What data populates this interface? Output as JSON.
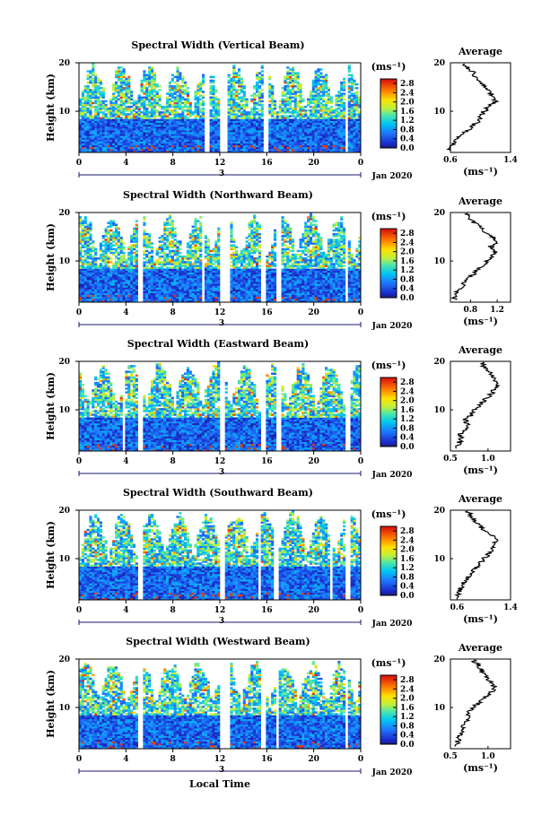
{
  "chart_data": {
    "type": "heatmap",
    "shared": {
      "xlabel": "Local Time",
      "ylabel": "Height (km)",
      "x_ticks": [
        "0",
        "4",
        "8",
        "12",
        "16",
        "20",
        "0"
      ],
      "xlim_hours": [
        0,
        24
      ],
      "day_marker": "3",
      "month_label": "Jan 2020",
      "ylim_km": [
        1.5,
        20
      ],
      "y_ticks": [
        "20",
        "10"
      ],
      "colorbar": {
        "unit_label": "(ms⁻¹)",
        "tick_labels": [
          "2.8",
          "2.4",
          "2.0",
          "1.6",
          "1.2",
          "0.8",
          "0.4",
          "0.0"
        ],
        "range": [
          0,
          3.0
        ]
      },
      "average_title": "Average",
      "average_xlabel": "(ms⁻¹)",
      "average_ylim_km": [
        1.5,
        20
      ]
    },
    "panels": [
      {
        "title": "Spectral Width (Vertical Beam)",
        "gaps_hours": [
          [
            10.6,
            11.1
          ],
          [
            12.0,
            12.6
          ],
          [
            15.7,
            16.1
          ],
          [
            22.6,
            23.0
          ]
        ],
        "average": {
          "xlim": [
            0.6,
            1.4
          ],
          "x_ticks": [
            "0.6",
            "1.4"
          ],
          "profile": [
            [
              2,
              0.58
            ],
            [
              3,
              0.62
            ],
            [
              4,
              0.68
            ],
            [
              5,
              0.75
            ],
            [
              6,
              0.82
            ],
            [
              7,
              0.9
            ],
            [
              8,
              0.97
            ],
            [
              9,
              1.0
            ],
            [
              10,
              1.05
            ],
            [
              11,
              1.12
            ],
            [
              12,
              1.2
            ],
            [
              13,
              1.18
            ],
            [
              14,
              1.12
            ],
            [
              15,
              1.08
            ],
            [
              16,
              1.0
            ],
            [
              17,
              0.95
            ],
            [
              18,
              0.9
            ],
            [
              19,
              0.82
            ],
            [
              20,
              0.75
            ]
          ]
        }
      },
      {
        "title": "Spectral Width (Northward Beam)",
        "gaps_hours": [
          [
            5.0,
            5.4
          ],
          [
            10.5,
            10.7
          ],
          [
            12.0,
            12.9
          ],
          [
            15.4,
            16.0
          ],
          [
            16.9,
            17.3
          ],
          [
            22.6,
            23.0
          ]
        ],
        "average": {
          "xlim": [
            0.5,
            1.4
          ],
          "x_ticks": [
            "0.8",
            "1.2"
          ],
          "profile": [
            [
              2,
              0.55
            ],
            [
              3,
              0.58
            ],
            [
              4,
              0.62
            ],
            [
              5,
              0.68
            ],
            [
              6,
              0.74
            ],
            [
              7,
              0.82
            ],
            [
              8,
              0.9
            ],
            [
              9,
              0.98
            ],
            [
              10,
              1.05
            ],
            [
              11,
              1.12
            ],
            [
              12,
              1.18
            ],
            [
              13,
              1.1
            ],
            [
              14,
              1.22
            ],
            [
              15,
              1.12
            ],
            [
              16,
              1.02
            ],
            [
              17,
              0.95
            ],
            [
              18,
              0.85
            ],
            [
              19,
              0.78
            ],
            [
              20,
              0.72
            ]
          ]
        }
      },
      {
        "title": "Spectral Width (Eastward Beam)",
        "gaps_hours": [
          [
            3.8,
            4.0
          ],
          [
            5.0,
            5.4
          ],
          [
            12.0,
            12.5
          ],
          [
            15.5,
            16.0
          ],
          [
            16.9,
            17.2
          ],
          [
            22.7,
            23.1
          ]
        ],
        "average": {
          "xlim": [
            0.5,
            1.3
          ],
          "x_ticks": [
            "0.5",
            "1.0"
          ],
          "profile": [
            [
              2,
              0.58
            ],
            [
              3,
              0.6
            ],
            [
              4,
              0.65
            ],
            [
              5,
              0.62
            ],
            [
              6,
              0.7
            ],
            [
              7,
              0.72
            ],
            [
              8,
              0.7
            ],
            [
              9,
              0.78
            ],
            [
              10,
              0.82
            ],
            [
              11,
              0.88
            ],
            [
              12,
              0.95
            ],
            [
              13,
              1.02
            ],
            [
              14,
              1.08
            ],
            [
              15,
              1.12
            ],
            [
              16,
              1.1
            ],
            [
              17,
              1.05
            ],
            [
              18,
              1.0
            ],
            [
              19,
              0.95
            ],
            [
              20,
              0.9
            ]
          ]
        }
      },
      {
        "title": "Spectral Width (Southward Beam)",
        "gaps_hours": [
          [
            5.0,
            5.4
          ],
          [
            12.0,
            12.5
          ],
          [
            15.3,
            15.6
          ],
          [
            16.5,
            17.0
          ],
          [
            21.3,
            21.5
          ],
          [
            22.7,
            23.1
          ]
        ],
        "average": {
          "xlim": [
            0.5,
            1.4
          ],
          "x_ticks": [
            "0.6",
            "1.4"
          ],
          "profile": [
            [
              2,
              0.6
            ],
            [
              3,
              0.62
            ],
            [
              4,
              0.66
            ],
            [
              5,
              0.7
            ],
            [
              6,
              0.75
            ],
            [
              7,
              0.82
            ],
            [
              8,
              0.88
            ],
            [
              9,
              0.95
            ],
            [
              10,
              1.0
            ],
            [
              11,
              1.08
            ],
            [
              12,
              1.12
            ],
            [
              13,
              1.15
            ],
            [
              14,
              1.2
            ],
            [
              15,
              1.1
            ],
            [
              16,
              1.0
            ],
            [
              17,
              0.92
            ],
            [
              18,
              0.85
            ],
            [
              19,
              0.8
            ],
            [
              20,
              0.75
            ]
          ]
        }
      },
      {
        "title": "Spectral Width (Westward Beam)",
        "gaps_hours": [
          [
            5.1,
            5.5
          ],
          [
            12.0,
            12.8
          ],
          [
            15.5,
            16.0
          ],
          [
            16.7,
            17.1
          ],
          [
            22.7,
            23.0
          ]
        ],
        "average": {
          "xlim": [
            0.5,
            1.3
          ],
          "x_ticks": [
            "0.5",
            "1.0"
          ],
          "profile": [
            [
              2,
              0.58
            ],
            [
              3,
              0.6
            ],
            [
              4,
              0.62
            ],
            [
              5,
              0.64
            ],
            [
              6,
              0.66
            ],
            [
              7,
              0.7
            ],
            [
              8,
              0.72
            ],
            [
              9,
              0.75
            ],
            [
              10,
              0.8
            ],
            [
              11,
              0.88
            ],
            [
              12,
              0.95
            ],
            [
              13,
              1.02
            ],
            [
              14,
              1.1
            ],
            [
              15,
              1.05
            ],
            [
              16,
              1.0
            ],
            [
              17,
              0.95
            ],
            [
              18,
              0.9
            ],
            [
              19,
              0.85
            ],
            [
              20,
              0.8
            ]
          ]
        }
      }
    ]
  }
}
